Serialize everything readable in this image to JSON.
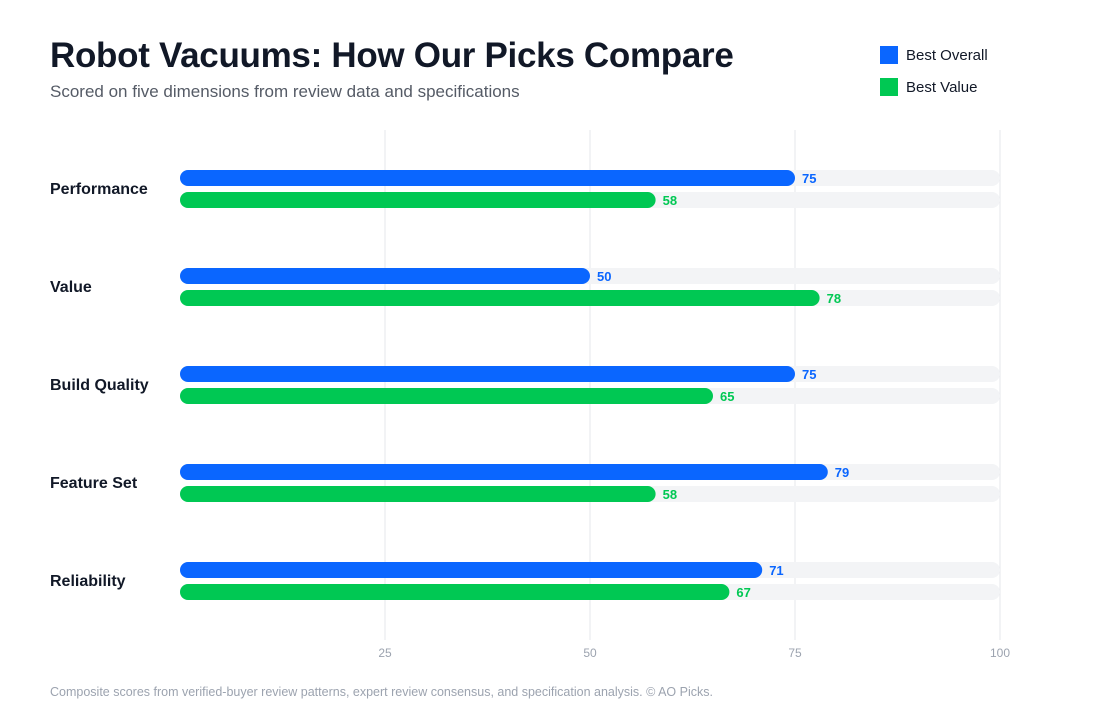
{
  "header": {
    "title": "Robot Vacuums: How Our Picks Compare",
    "subtitle": "Scored on five dimensions from review data and specifications"
  },
  "footer": {
    "note": "Composite scores from verified-buyer review patterns, expert review consensus, and specification analysis. © AO Picks."
  },
  "colors": {
    "best_overall": "#0a66ff",
    "best_value": "#00c853",
    "track": "#f3f4f6",
    "grid": "#e5e7eb",
    "tick_label": "#9ca3af",
    "category_label": "#111827"
  },
  "chart_data": {
    "type": "bar",
    "orientation": "horizontal",
    "categories": [
      "Performance",
      "Value",
      "Build Quality",
      "Feature Set",
      "Reliability"
    ],
    "series": [
      {
        "name": "Best Overall",
        "color": "#0a66ff",
        "values": [
          75,
          50,
          75,
          79,
          71
        ]
      },
      {
        "name": "Best Value",
        "color": "#00c853",
        "values": [
          58,
          78,
          65,
          58,
          67
        ]
      }
    ],
    "xlim": [
      0,
      100
    ],
    "xticks": [
      25,
      50,
      75,
      100
    ],
    "grid": true,
    "legend_position": "top-right",
    "data_labels": true
  }
}
